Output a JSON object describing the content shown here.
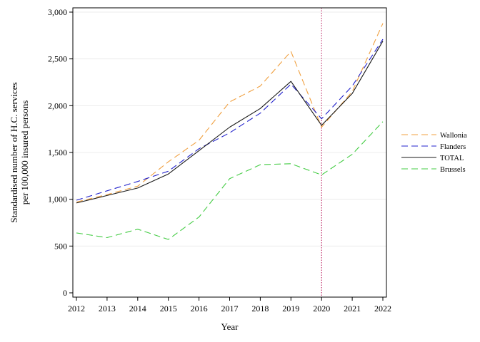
{
  "chart_data": {
    "type": "line",
    "title": "",
    "xlabel": "Year",
    "ylabel_lines": [
      "Standardised number of H.C. services",
      "per 100,000 insured persons"
    ],
    "x": [
      2012,
      2013,
      2014,
      2015,
      2016,
      2017,
      2018,
      2019,
      2020,
      2021,
      2022
    ],
    "x_tick_labels": [
      "2012",
      "2013",
      "2014",
      "2015",
      "2016",
      "2017",
      "2018",
      "2019",
      "2020",
      "2021",
      "2022"
    ],
    "ylim": [
      0,
      3000
    ],
    "y_ticks": [
      0,
      500,
      1000,
      1500,
      2000,
      2500,
      3000
    ],
    "y_tick_labels": [
      "0",
      "500",
      "1,000",
      "1,500",
      "2,000",
      "2,500",
      "3,000"
    ],
    "grid": "horizontal",
    "legend_position": "right",
    "reference_line": {
      "x": 2020,
      "color": "#c0306a"
    },
    "series": [
      {
        "name": "Wallonia",
        "color": "#f0a040",
        "dash": "9,5",
        "values": [
          970,
          1050,
          1140,
          1400,
          1630,
          2040,
          2210,
          2580,
          1770,
          2150,
          2880
        ]
      },
      {
        "name": "Flanders",
        "color": "#2222cc",
        "dash": "9,5",
        "values": [
          990,
          1090,
          1190,
          1300,
          1540,
          1710,
          1920,
          2230,
          1860,
          2210,
          2710
        ]
      },
      {
        "name": "TOTAL",
        "color": "#1a1a1a",
        "dash": "",
        "values": [
          960,
          1040,
          1120,
          1270,
          1520,
          1770,
          1970,
          2260,
          1790,
          2130,
          2690
        ]
      },
      {
        "name": "Brussels",
        "color": "#44cc44",
        "dash": "9,5",
        "values": [
          640,
          590,
          680,
          570,
          810,
          1220,
          1370,
          1380,
          1260,
          1480,
          1830
        ]
      }
    ]
  }
}
